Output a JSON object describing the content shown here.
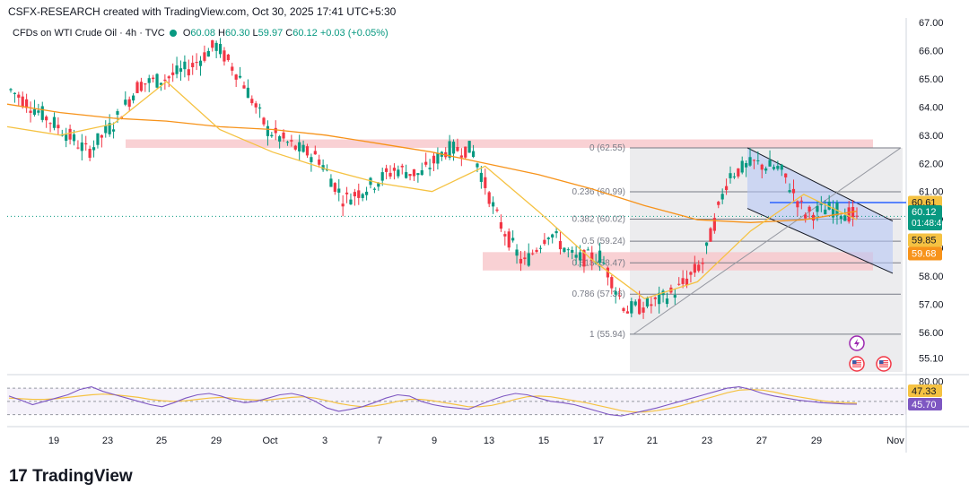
{
  "header": {
    "credit": "CSFX-RESEARCH created with TradingView.com, Oct 30, 2025 17:41 UTC+5:30",
    "symbol": "CFDs on WTI Crude Oil · 4h · TVC",
    "open_label": "O",
    "open": "60.08",
    "high_label": "H",
    "high": "60.30",
    "low_label": "L",
    "low": "59.97",
    "close_label": "C",
    "close": "60.12",
    "change": "+0.03 (+0.05%)"
  },
  "brand": {
    "logo": "17",
    "name": "TradingView"
  },
  "colors": {
    "up": "#089981",
    "down": "#f23645",
    "ma_orange": "#f7931a",
    "ma_yellow": "#f5c242",
    "rsi": "#7e57c2",
    "rsi_ma": "#f5c242",
    "zone": "#f8c9cd",
    "blue_line": "#2962ff"
  },
  "chart_data": {
    "type": "candlestick",
    "title": "",
    "timeframe": "4h",
    "x_tick_labels": [
      "19",
      "23",
      "25",
      "29",
      "Oct",
      "3",
      "7",
      "9",
      "13",
      "15",
      "17",
      "21",
      "23",
      "27",
      "29",
      "Nov"
    ],
    "y_axis": {
      "ylim": [
        54.6,
        67.0
      ],
      "tick_labels": [
        "67.00",
        "66.00",
        "65.00",
        "64.00",
        "63.00",
        "62.00",
        "61.00",
        "60.00",
        "59.00",
        "58.00",
        "57.00",
        "56.00",
        "55.10"
      ]
    },
    "ohlc_keypoints": [
      {
        "label": "Sep 17",
        "value": 64.6
      },
      {
        "label": "Sep 18",
        "value": 63.9
      },
      {
        "label": "Sep 19",
        "value": 63.2
      },
      {
        "label": "Sep 22",
        "value": 62.4
      },
      {
        "label": "Sep 23",
        "value": 63.4
      },
      {
        "label": "Sep 24",
        "value": 64.8
      },
      {
        "label": "Sep 25",
        "value": 65.0
      },
      {
        "label": "Sep 26",
        "value": 65.4
      },
      {
        "label": "Sep 27",
        "value": 66.2
      },
      {
        "label": "Sep 28",
        "value": 65.0
      },
      {
        "label": "Sep 29",
        "value": 63.2
      },
      {
        "label": "Sep 30",
        "value": 62.6
      },
      {
        "label": "Oct 1",
        "value": 62.2
      },
      {
        "label": "Oct 2",
        "value": 60.7
      },
      {
        "label": "Oct 3",
        "value": 61.2
      },
      {
        "label": "Oct 6",
        "value": 61.8
      },
      {
        "label": "Oct 7",
        "value": 61.6
      },
      {
        "label": "Oct 8",
        "value": 62.5
      },
      {
        "label": "Oct 9",
        "value": 62.5
      },
      {
        "label": "Oct 10",
        "value": 60.0
      },
      {
        "label": "Oct 13",
        "value": 58.4
      },
      {
        "label": "Oct 14",
        "value": 59.6
      },
      {
        "label": "Oct 15",
        "value": 58.6
      },
      {
        "label": "Oct 16",
        "value": 58.7
      },
      {
        "label": "Oct 17",
        "value": 56.8
      },
      {
        "label": "Oct 20",
        "value": 57.0
      },
      {
        "label": "Oct 21",
        "value": 57.5
      },
      {
        "label": "Oct 22",
        "value": 58.5
      },
      {
        "label": "Oct 23",
        "value": 61.6
      },
      {
        "label": "Oct 24",
        "value": 62.0
      },
      {
        "label": "Oct 27",
        "value": 61.8
      },
      {
        "label": "Oct 28",
        "value": 60.2
      },
      {
        "label": "Oct 29",
        "value": 60.4
      },
      {
        "label": "Oct 30",
        "value": 60.12
      }
    ],
    "moving_averages": [
      {
        "color": "orange",
        "points": [
          64.1,
          63.8,
          63.6,
          63.5,
          63.3,
          63.2,
          63.0,
          62.7,
          62.4,
          62.0,
          61.6,
          61.1,
          60.5,
          60.0,
          59.9,
          60.0,
          60.3
        ]
      },
      {
        "color": "yellow",
        "points": [
          63.3,
          63.0,
          63.4,
          64.9,
          63.2,
          62.4,
          61.8,
          61.3,
          61.0,
          61.9,
          60.3,
          58.6,
          57.2,
          57.8,
          59.6,
          60.9,
          60.0
        ]
      }
    ],
    "fibonacci": [
      {
        "label": "0 (62.55)",
        "value": 62.55
      },
      {
        "label": "0.236 (60.99)",
        "value": 60.99
      },
      {
        "label": "0.382 (60.02)",
        "value": 60.02
      },
      {
        "label": "0.5 (59.24)",
        "value": 59.24
      },
      {
        "label": "0.618 (58.47)",
        "value": 58.47
      },
      {
        "label": "0.786 (57.36)",
        "value": 57.36
      },
      {
        "label": "1 (55.94)",
        "value": 55.94
      }
    ],
    "zones": [
      {
        "name": "resistance",
        "from": 62.55,
        "to": 62.85
      },
      {
        "name": "support",
        "from": 58.2,
        "to": 58.85
      }
    ],
    "channel": {
      "upper": [
        62.55,
        59.95
      ],
      "lower": [
        60.4,
        58.1
      ]
    },
    "horizontal_line": 60.61,
    "price_labels": [
      {
        "value": "60.61",
        "color": "#f5c242",
        "text_color": "#131722"
      },
      {
        "value": "60.12",
        "sub": "01:48:46",
        "color": "#089981",
        "text_color": "#ffffff"
      },
      {
        "value": "59.85",
        "color": "#f5c242",
        "text_color": "#131722"
      },
      {
        "value": "59.68",
        "color": "#f7931a",
        "text_color": "#ffffff"
      }
    ],
    "rsi": {
      "ylim": [
        20,
        85
      ],
      "tick_labels": [
        "80.00"
      ],
      "labels": [
        {
          "value": "47.33",
          "color": "#f5c242",
          "text_color": "#131722"
        },
        {
          "value": "45.70",
          "color": "#7e57c2",
          "text_color": "#ffffff"
        }
      ],
      "values": [
        58,
        52,
        45,
        50,
        55,
        60,
        68,
        72,
        65,
        60,
        55,
        50,
        45,
        42,
        48,
        55,
        60,
        62,
        58,
        52,
        48,
        50,
        55,
        60,
        62,
        58,
        50,
        40,
        35,
        38,
        42,
        48,
        55,
        60,
        58,
        50,
        45,
        42,
        40,
        38,
        45,
        52,
        58,
        62,
        60,
        55,
        50,
        48,
        45,
        40,
        35,
        30,
        28,
        32,
        36,
        40,
        45,
        50,
        55,
        60,
        65,
        70,
        72,
        68,
        62,
        58,
        55,
        52,
        50,
        48,
        47,
        46,
        45.7
      ],
      "ma_values": [
        55,
        54,
        53,
        53,
        54,
        56,
        58,
        60,
        61,
        60,
        58,
        56,
        53,
        51,
        50,
        51,
        53,
        55,
        56,
        55,
        53,
        52,
        52,
        54,
        56,
        57,
        55,
        51,
        47,
        44,
        42,
        43,
        46,
        50,
        53,
        53,
        51,
        48,
        45,
        42,
        42,
        44,
        48,
        53,
        57,
        58,
        57,
        54,
        51,
        48,
        44,
        40,
        36,
        34,
        34,
        36,
        39,
        43,
        48,
        53,
        58,
        63,
        67,
        68,
        67,
        64,
        60,
        57,
        54,
        51,
        49,
        48,
        47.3
      ]
    },
    "event_icons": [
      "lightning-icon",
      "us-flag-icon",
      "us-flag-icon"
    ]
  }
}
